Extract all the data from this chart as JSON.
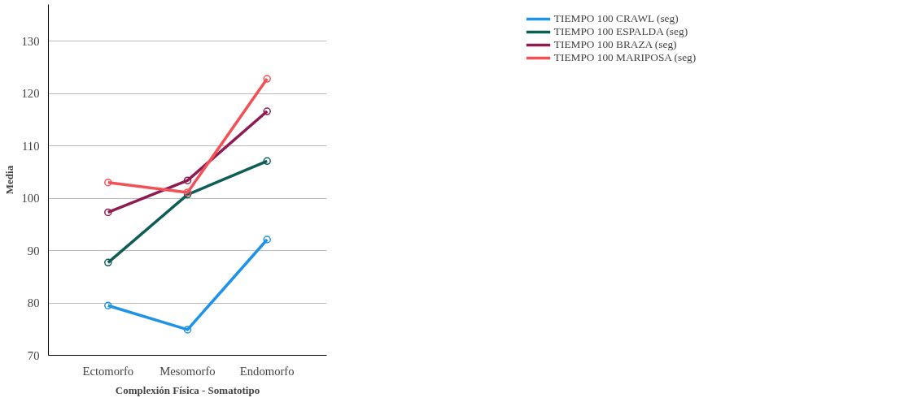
{
  "chart_data": {
    "type": "line",
    "xlabel": "Complexión Física - Somatotipo",
    "ylabel": "Media",
    "categories": [
      "Ectomorfo",
      "Mesomorfo",
      "Endomorfo"
    ],
    "series": [
      {
        "name": "TIEMPO 100 CRAWL (seg)",
        "color": "#1f93e8",
        "values": [
          79.5,
          74.9,
          92.1
        ]
      },
      {
        "name": "TIEMPO 100 ESPALDA (seg)",
        "color": "#0e5e57",
        "values": [
          87.7,
          100.7,
          107.1
        ]
      },
      {
        "name": "TIEMPO 100 BRAZA (seg)",
        "color": "#8e1c52",
        "values": [
          97.3,
          103.4,
          116.6
        ]
      },
      {
        "name": "TIEMPO 100 MARIPOSA (seg)",
        "color": "#f45058",
        "values": [
          103.0,
          101.1,
          122.8
        ]
      }
    ],
    "ylim": [
      70,
      137
    ],
    "yticks": [
      70,
      80,
      90,
      100,
      110,
      120,
      130
    ],
    "grid": "y",
    "legend": "top right",
    "marker": "circle",
    "line_style": "solid"
  }
}
